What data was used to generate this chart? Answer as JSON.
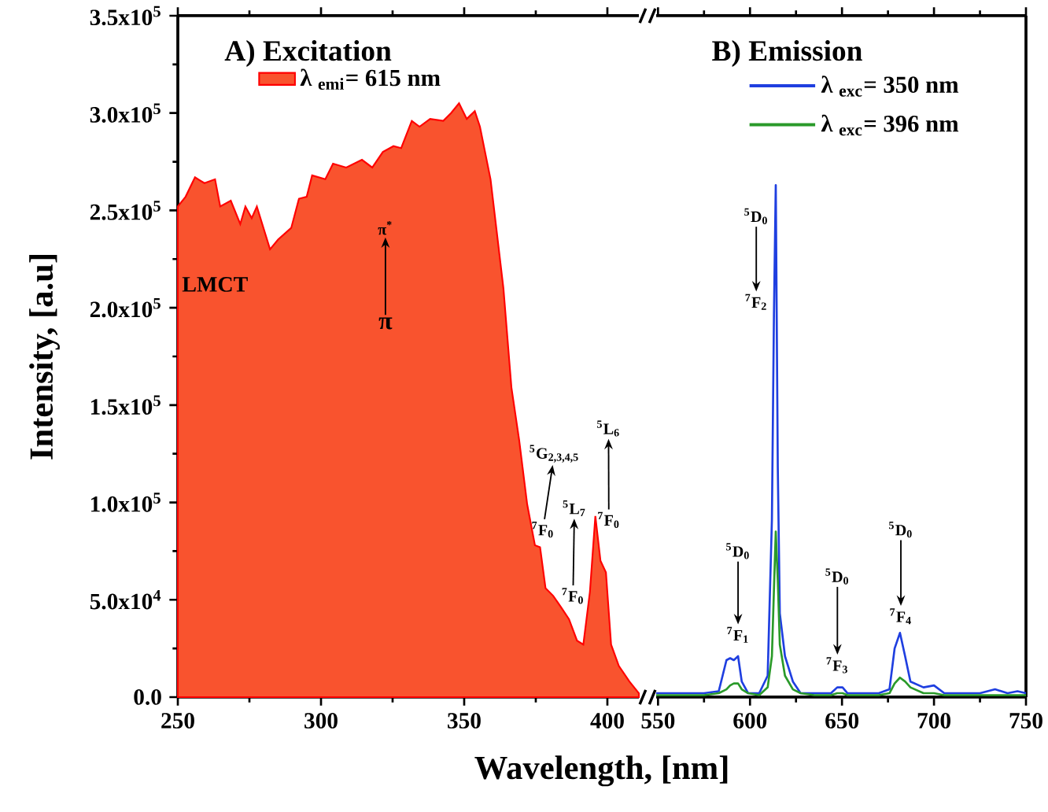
{
  "chart_data": [
    {
      "type": "area",
      "title": "A) Excitation",
      "ylabel": "Intensity, [a.u]",
      "xlabel": "Wavelength, [nm]",
      "x": [
        250,
        252.7,
        256,
        259.3,
        263,
        264.8,
        268.5,
        271.8,
        273.6,
        275.8,
        277.6,
        282.2,
        285,
        289.6,
        292.3,
        295,
        296.9,
        301.5,
        304.2,
        308.8,
        314.3,
        317.9,
        321.6,
        325.3,
        328,
        331.7,
        334.4,
        338.1,
        342.7,
        345.4,
        348.2,
        350.9,
        353.7,
        355.5,
        359.2,
        363.7,
        366.5,
        369.2,
        372,
        374.7,
        376.5,
        378.4,
        381.1,
        383.9,
        386.6,
        389.4,
        391.6,
        393.9,
        395.8,
        397.6,
        399.5,
        401.3,
        404,
        407.7,
        411
      ],
      "series": [
        {
          "name": "λ $_{emi}$= 615 nm",
          "color": "#f9532e",
          "values": [
            252000,
            257000,
            267000,
            264000,
            266000,
            252000,
            255000,
            243000,
            252000,
            246000,
            252000,
            230000,
            235000,
            241000,
            256000,
            257000,
            268000,
            266000,
            274000,
            272000,
            276000,
            272000,
            280000,
            283000,
            282000,
            296000,
            293000,
            297000,
            296000,
            300000,
            305000,
            297000,
            301000,
            293000,
            266000,
            210000,
            159000,
            132000,
            99000,
            78000,
            77000,
            56000,
            52000,
            46000,
            40000,
            29000,
            27000,
            54000,
            93000,
            70000,
            64000,
            27000,
            16000,
            8000,
            2000
          ]
        }
      ],
      "xlim": [
        250,
        411
      ],
      "xticks": [
        250,
        300,
        350,
        400
      ],
      "ylim": [
        0,
        350000
      ],
      "yticks": [
        {
          "value": 0,
          "label": "0.0"
        },
        {
          "value": 50000,
          "label": "5.0x10$^{4}$"
        },
        {
          "value": 100000,
          "label": "1.0x10$^{5}$"
        },
        {
          "value": 150000,
          "label": "1.5x10$^{5}$"
        },
        {
          "value": 200000,
          "label": "2.0x10$^{5}$"
        },
        {
          "value": 250000,
          "label": "2.5x10$^{5}$"
        },
        {
          "value": 300000,
          "label": "3.0x10$^{5}$"
        },
        {
          "value": 350000,
          "label": "3.5x10$^{5}$"
        }
      ],
      "legend": "top left",
      "annotations": [
        "LMCT",
        "π$^{*}$",
        "π",
        "$^{5}$G$_{2,3,4,5}$",
        "$^{7}$F$_{0}$",
        "$^{5}$L$_{7}$",
        "$^{7}$F$_{0}$",
        "$^{5}$L$_{6}$",
        "$^{7}$F$_{0}$"
      ]
    },
    {
      "type": "line",
      "title": "B) Emission",
      "x": [
        549,
        560,
        575,
        583,
        587.2,
        589.2,
        591.2,
        593.5,
        595.5,
        599,
        605,
        609.6,
        611.9,
        613,
        614,
        615.1,
        616.2,
        619,
        623.3,
        627.5,
        635,
        644,
        647.4,
        650.3,
        653,
        660,
        670,
        675.8,
        678.6,
        681.5,
        684.3,
        687.2,
        694.3,
        700,
        705.6,
        715,
        725,
        733.2,
        740,
        745.4,
        750
      ],
      "series": [
        {
          "name": "λ $_{exc}$= 350 nm",
          "color": "#1f3fe0",
          "values": [
            2000,
            2000,
            2000,
            3000,
            19000,
            20000,
            19000,
            21000,
            8000,
            2000,
            2000,
            11000,
            91000,
            196000,
            263000,
            118000,
            43000,
            21000,
            8000,
            2000,
            2000,
            2000,
            5000,
            5000,
            2000,
            2000,
            2000,
            4000,
            25000,
            33000,
            21000,
            8000,
            5000,
            6000,
            2000,
            2000,
            2000,
            4000,
            2000,
            3000,
            2000
          ]
        },
        {
          "name": "λ $_{exc}$= 396 nm",
          "color": "#2a9a2a",
          "values": [
            1000,
            1000,
            1000,
            2000,
            4000,
            6000,
            7000,
            7000,
            4000,
            2000,
            1000,
            5000,
            21000,
            55000,
            85000,
            60000,
            27000,
            11000,
            4000,
            2000,
            1000,
            1000,
            2000,
            2000,
            1000,
            1000,
            1000,
            2000,
            7000,
            10000,
            8000,
            5000,
            2000,
            2000,
            1000,
            1000,
            1000,
            1000,
            1000,
            1000,
            1000
          ]
        }
      ],
      "xlim": [
        549,
        750
      ],
      "xticks": [
        550,
        600,
        650,
        700,
        750
      ],
      "ylim": [
        0,
        350000
      ],
      "tick_labels": "x",
      "legend": "top",
      "annotations": [
        "$^{5}$D$_{0}$",
        "$^{7}$F$_{1}$",
        "$^{5}$D$_{0}$",
        "$^{7}$F$_{2}$",
        "$^{5}$D$_{0}$",
        "$^{7}$F$_{3}$",
        "$^{5}$D$_{0}$",
        "$^{7}$F$_{4}$"
      ]
    }
  ]
}
